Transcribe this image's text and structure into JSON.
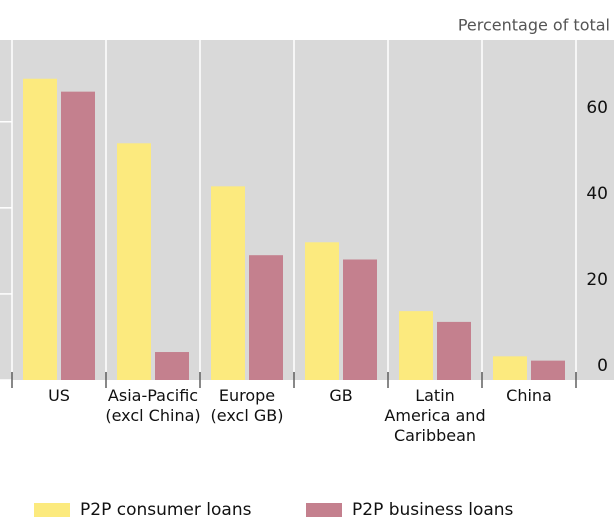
{
  "chart_data": {
    "type": "bar",
    "y_label": "Percentage of total",
    "categories": [
      "US",
      "Asia-Pacific\n(excl China)",
      "Europe\n(excl GB)",
      "GB",
      "Latin\nAmerica and\nCaribbean",
      "China"
    ],
    "series": [
      {
        "name": "P2P consumer loans",
        "color": "#fcea7e",
        "values": [
          70,
          55,
          45,
          32,
          16,
          5.5
        ]
      },
      {
        "name": "P2P business loans",
        "color": "#c4808e",
        "values": [
          67,
          6.5,
          29,
          28,
          13.5,
          4.5
        ]
      }
    ],
    "ylim": [
      0,
      79
    ],
    "yticks": [
      0,
      20,
      40,
      60
    ],
    "grid": true,
    "legend": "bottom"
  }
}
